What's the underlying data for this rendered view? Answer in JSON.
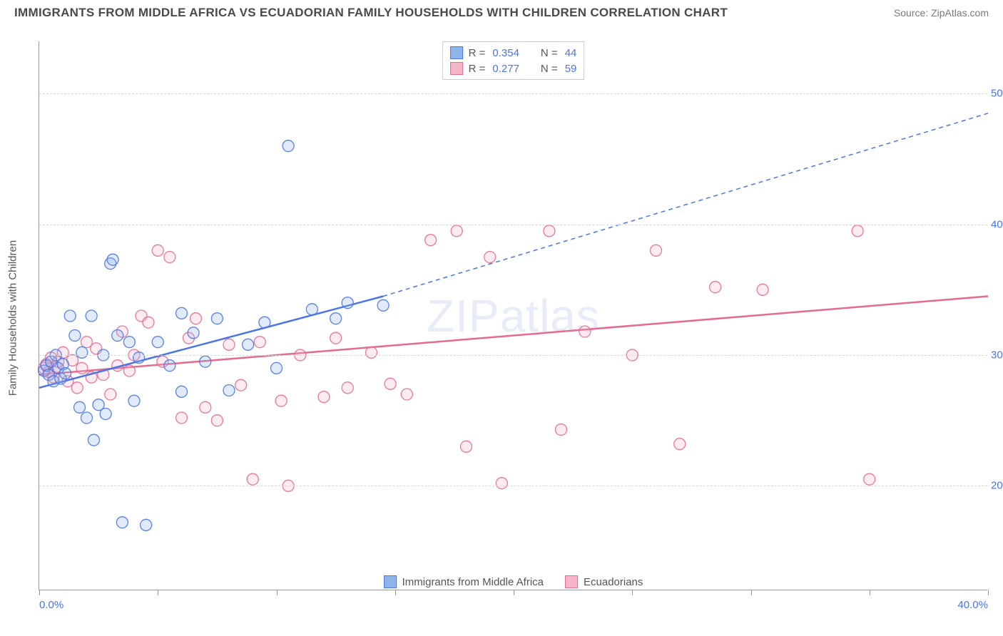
{
  "title": "IMMIGRANTS FROM MIDDLE AFRICA VS ECUADORIAN FAMILY HOUSEHOLDS WITH CHILDREN CORRELATION CHART",
  "source": "Source: ZipAtlas.com",
  "watermark": "ZIPatlas",
  "ylabel": "Family Households with Children",
  "chart": {
    "type": "scatter",
    "xlim": [
      0,
      40
    ],
    "ylim": [
      12,
      54
    ],
    "xtick_labels": [
      "0.0%",
      "40.0%"
    ],
    "xtick_positions": [
      0,
      40
    ],
    "xminor_step": 5,
    "ytick_labels": [
      "20.0%",
      "30.0%",
      "40.0%",
      "50.0%"
    ],
    "ytick_positions": [
      20,
      30,
      40,
      50
    ],
    "background_color": "#ffffff",
    "grid_color": "#d8d8d8",
    "axis_color": "#999999",
    "tick_label_color": "#4a74e8",
    "axis_label_color": "#555555",
    "marker_radius": 8,
    "marker_fill_opacity": 0.28,
    "marker_stroke_opacity": 0.9,
    "marker_stroke_width": 1.3
  },
  "series": [
    {
      "name": "Immigrants from Middle Africa",
      "color_fill": "#8fb4ea",
      "color_stroke": "#4a74e8",
      "R": "0.354",
      "N": "44",
      "points": [
        [
          0.2,
          28.8
        ],
        [
          0.3,
          29.2
        ],
        [
          0.4,
          28.5
        ],
        [
          0.5,
          29.5
        ],
        [
          0.6,
          28.0
        ],
        [
          0.7,
          30.0
        ],
        [
          0.8,
          29.0
        ],
        [
          0.9,
          28.2
        ],
        [
          1.0,
          29.3
        ],
        [
          1.1,
          28.6
        ],
        [
          1.3,
          33.0
        ],
        [
          1.5,
          31.5
        ],
        [
          1.7,
          26.0
        ],
        [
          1.8,
          30.2
        ],
        [
          2.0,
          25.2
        ],
        [
          2.2,
          33.0
        ],
        [
          2.3,
          23.5
        ],
        [
          2.5,
          26.2
        ],
        [
          2.7,
          30.0
        ],
        [
          2.8,
          25.5
        ],
        [
          3.0,
          37.0
        ],
        [
          3.1,
          37.3
        ],
        [
          3.3,
          31.5
        ],
        [
          3.5,
          17.2
        ],
        [
          3.8,
          31.0
        ],
        [
          4.0,
          26.5
        ],
        [
          4.2,
          29.8
        ],
        [
          4.5,
          17.0
        ],
        [
          5.0,
          31.0
        ],
        [
          5.5,
          29.2
        ],
        [
          6.0,
          33.2
        ],
        [
          6.0,
          27.2
        ],
        [
          6.5,
          31.7
        ],
        [
          7.0,
          29.5
        ],
        [
          7.5,
          32.8
        ],
        [
          8.0,
          27.3
        ],
        [
          8.8,
          30.8
        ],
        [
          9.5,
          32.5
        ],
        [
          10.0,
          29.0
        ],
        [
          10.5,
          46.0
        ],
        [
          11.5,
          33.5
        ],
        [
          12.5,
          32.8
        ],
        [
          13.0,
          34.0
        ],
        [
          14.5,
          33.8
        ]
      ],
      "trend": {
        "solid": [
          [
            0,
            27.5
          ],
          [
            14.5,
            34.5
          ]
        ],
        "dashed": [
          [
            14.5,
            34.5
          ],
          [
            40,
            48.5
          ]
        ],
        "stroke_width": 2.5
      }
    },
    {
      "name": "Ecuadorians",
      "color_fill": "#f5b6c8",
      "color_stroke": "#e56a8f",
      "R": "0.277",
      "N": "59",
      "points": [
        [
          0.2,
          29.0
        ],
        [
          0.3,
          29.3
        ],
        [
          0.4,
          28.7
        ],
        [
          0.5,
          29.8
        ],
        [
          0.6,
          28.3
        ],
        [
          0.7,
          29.1
        ],
        [
          0.8,
          29.5
        ],
        [
          1.0,
          30.2
        ],
        [
          1.2,
          28.0
        ],
        [
          1.4,
          29.6
        ],
        [
          1.6,
          27.5
        ],
        [
          1.8,
          29.0
        ],
        [
          2.0,
          31.0
        ],
        [
          2.2,
          28.3
        ],
        [
          2.4,
          30.5
        ],
        [
          2.7,
          28.5
        ],
        [
          3.0,
          27.0
        ],
        [
          3.3,
          29.2
        ],
        [
          3.5,
          31.8
        ],
        [
          3.8,
          28.8
        ],
        [
          4.0,
          30.0
        ],
        [
          4.3,
          33.0
        ],
        [
          4.6,
          32.5
        ],
        [
          5.0,
          38.0
        ],
        [
          5.2,
          29.5
        ],
        [
          5.5,
          37.5
        ],
        [
          6.0,
          25.2
        ],
        [
          6.3,
          31.3
        ],
        [
          6.6,
          32.8
        ],
        [
          7.0,
          26.0
        ],
        [
          7.5,
          25.0
        ],
        [
          8.0,
          30.8
        ],
        [
          8.5,
          27.7
        ],
        [
          9.0,
          20.5
        ],
        [
          9.3,
          31.0
        ],
        [
          10.2,
          26.5
        ],
        [
          10.5,
          20.0
        ],
        [
          11.0,
          30.0
        ],
        [
          12.0,
          26.8
        ],
        [
          12.5,
          31.3
        ],
        [
          13.0,
          27.5
        ],
        [
          14.0,
          30.2
        ],
        [
          14.8,
          27.8
        ],
        [
          15.5,
          27.0
        ],
        [
          16.5,
          38.8
        ],
        [
          17.6,
          39.5
        ],
        [
          18.0,
          23.0
        ],
        [
          19.0,
          37.5
        ],
        [
          19.5,
          20.2
        ],
        [
          21.5,
          39.5
        ],
        [
          22.0,
          24.3
        ],
        [
          23.0,
          31.8
        ],
        [
          25.0,
          30.0
        ],
        [
          26.0,
          38.0
        ],
        [
          27.0,
          23.2
        ],
        [
          28.5,
          35.2
        ],
        [
          30.5,
          35.0
        ],
        [
          34.5,
          39.5
        ],
        [
          35.0,
          20.5
        ]
      ],
      "trend": {
        "solid": [
          [
            0,
            28.5
          ],
          [
            40,
            34.5
          ]
        ],
        "stroke_width": 2.5
      }
    }
  ],
  "legend_bottom": [
    {
      "label": "Immigrants from Middle Africa",
      "fill": "#8fb4ea",
      "stroke": "#4a74e8"
    },
    {
      "label": "Ecuadorians",
      "fill": "#f5b6c8",
      "stroke": "#e56a8f"
    }
  ]
}
